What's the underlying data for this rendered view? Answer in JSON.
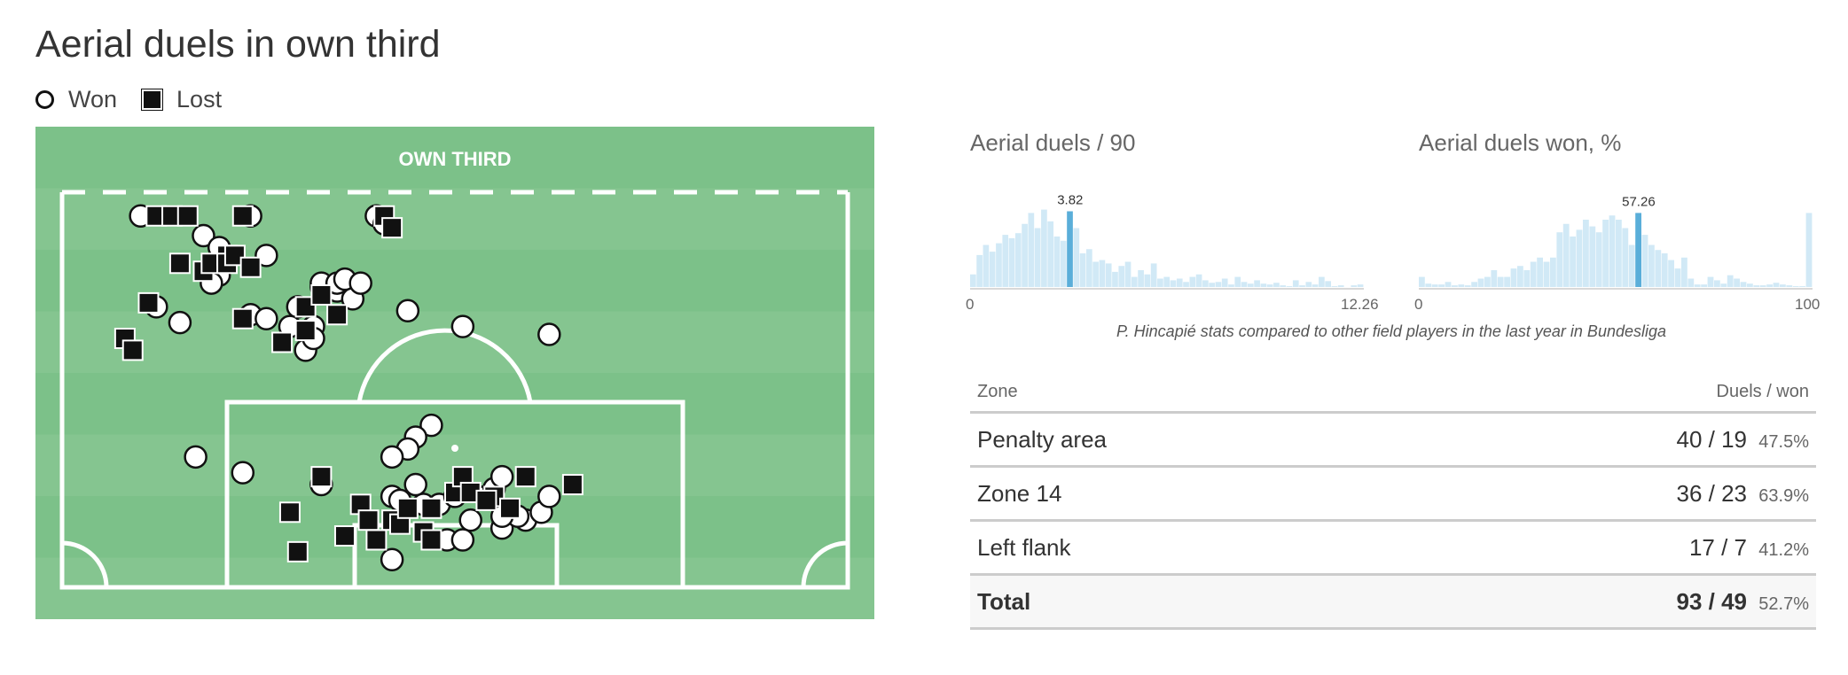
{
  "title": "Aerial duels in own third",
  "legend": {
    "won": "Won",
    "lost": "Lost"
  },
  "pitch": {
    "label": "OWN THIRD"
  },
  "chart_data": [
    {
      "type": "scatter",
      "name_key": "pitch-map",
      "coordinate_system": "pitch: x 0–100 from left touchline to right, y 0–100 from top of own third to own goal line",
      "won": [
        [
          10,
          6
        ],
        [
          18,
          11
        ],
        [
          20,
          14
        ],
        [
          24,
          6
        ],
        [
          26,
          16
        ],
        [
          20,
          21
        ],
        [
          19,
          23
        ],
        [
          12,
          29
        ],
        [
          15,
          33
        ],
        [
          24,
          31
        ],
        [
          26,
          32
        ],
        [
          30,
          29
        ],
        [
          29,
          34
        ],
        [
          31,
          40
        ],
        [
          32,
          34
        ],
        [
          32,
          37
        ],
        [
          33,
          24
        ],
        [
          33,
          23
        ],
        [
          35,
          25
        ],
        [
          35,
          23
        ],
        [
          37,
          27
        ],
        [
          36,
          22
        ],
        [
          38,
          23
        ],
        [
          40,
          6
        ],
        [
          41,
          8
        ],
        [
          44,
          30
        ],
        [
          51,
          34
        ],
        [
          62,
          36
        ],
        [
          47,
          59
        ],
        [
          45,
          62
        ],
        [
          44,
          65
        ],
        [
          42,
          67
        ],
        [
          17,
          67
        ],
        [
          23,
          71
        ],
        [
          33,
          74
        ],
        [
          42,
          77
        ],
        [
          43,
          78
        ],
        [
          46,
          79
        ],
        [
          48,
          79
        ],
        [
          50,
          77
        ],
        [
          45,
          74
        ],
        [
          54,
          77
        ],
        [
          55,
          75
        ],
        [
          56,
          72
        ],
        [
          52,
          83
        ],
        [
          56,
          85
        ],
        [
          59,
          83
        ],
        [
          61,
          81
        ],
        [
          62,
          77
        ],
        [
          49,
          88
        ],
        [
          51,
          88
        ],
        [
          42,
          93
        ],
        [
          58,
          82
        ],
        [
          56,
          82
        ]
      ],
      "lost": [
        [
          12,
          6
        ],
        [
          14,
          6
        ],
        [
          15,
          18
        ],
        [
          16,
          6
        ],
        [
          18,
          20
        ],
        [
          19,
          18
        ],
        [
          21,
          16
        ],
        [
          21,
          18
        ],
        [
          22,
          16
        ],
        [
          23,
          6
        ],
        [
          24,
          19
        ],
        [
          31,
          29
        ],
        [
          31,
          35
        ],
        [
          33,
          26
        ],
        [
          11,
          28
        ],
        [
          8,
          37
        ],
        [
          9,
          40
        ],
        [
          23,
          32
        ],
        [
          35,
          31
        ],
        [
          28,
          38
        ],
        [
          41,
          6
        ],
        [
          42,
          9
        ],
        [
          50,
          76
        ],
        [
          47,
          80
        ],
        [
          42,
          83
        ],
        [
          43,
          84
        ],
        [
          40,
          88
        ],
        [
          46,
          86
        ],
        [
          47,
          88
        ],
        [
          36,
          87
        ],
        [
          33,
          72
        ],
        [
          29,
          81
        ],
        [
          38,
          79
        ],
        [
          44,
          80
        ],
        [
          51,
          72
        ],
        [
          52,
          76
        ],
        [
          55,
          77
        ],
        [
          54,
          78
        ],
        [
          57,
          80
        ],
        [
          59,
          72
        ],
        [
          65,
          74
        ],
        [
          30,
          91
        ],
        [
          39,
          83
        ]
      ]
    },
    {
      "type": "bar",
      "name_key": "hist-per90",
      "title": "Aerial duels / 90",
      "xlim": [
        0,
        12.26
      ],
      "xlabels": [
        "0",
        "12.26"
      ],
      "marker": {
        "value": 3.82,
        "label": "3.82"
      },
      "highlight_bin": 15,
      "values": [
        15,
        38,
        50,
        42,
        52,
        62,
        58,
        64,
        75,
        88,
        70,
        92,
        78,
        60,
        55,
        90,
        70,
        40,
        45,
        30,
        32,
        28,
        18,
        25,
        30,
        12,
        20,
        15,
        28,
        10,
        12,
        8,
        10,
        6,
        12,
        15,
        8,
        5,
        6,
        10,
        3,
        12,
        6,
        4,
        8,
        4,
        3,
        5,
        2,
        1,
        8,
        2,
        6,
        3,
        12,
        7,
        1,
        2,
        0,
        2,
        3
      ],
      "ylim": [
        0,
        100
      ]
    },
    {
      "type": "bar",
      "name_key": "hist-won-pct",
      "title": "Aerial duels won, %",
      "xlim": [
        0,
        100
      ],
      "xlabels": [
        "0",
        "100"
      ],
      "marker": {
        "value": 57.26,
        "label": "57.26"
      },
      "highlight_bin": 33,
      "values": [
        12,
        4,
        3,
        3,
        6,
        2,
        3,
        2,
        6,
        10,
        12,
        20,
        12,
        12,
        22,
        25,
        20,
        30,
        35,
        30,
        35,
        65,
        75,
        60,
        68,
        80,
        72,
        65,
        80,
        85,
        80,
        70,
        50,
        88,
        62,
        50,
        44,
        40,
        32,
        22,
        35,
        10,
        3,
        3,
        12,
        8,
        4,
        14,
        10,
        6,
        4,
        2,
        2,
        3,
        5,
        3,
        2,
        1,
        1,
        88
      ],
      "ylim": [
        0,
        100
      ]
    }
  ],
  "hist_caption": "P. Hincapié stats compared to other field players in the last year in Bundesliga",
  "table": {
    "headers": {
      "zone": "Zone",
      "duels": "Duels / won"
    },
    "rows": [
      {
        "zone": "Penalty area",
        "ratio": "40 / 19",
        "pct": "47.5%"
      },
      {
        "zone": "Zone 14",
        "ratio": "36 / 23",
        "pct": "63.9%"
      },
      {
        "zone": "Left flank",
        "ratio": "17 / 7",
        "pct": "41.2%"
      }
    ],
    "total": {
      "zone": "Total",
      "ratio": "93 / 49",
      "pct": "52.7%"
    }
  },
  "colors": {
    "pitch_dark": "#7cc189",
    "pitch_light": "#85c590",
    "bar": "#d1e9f6",
    "bar_highlight": "#5aaed9",
    "lost": "#111111",
    "won": "#ffffff"
  }
}
